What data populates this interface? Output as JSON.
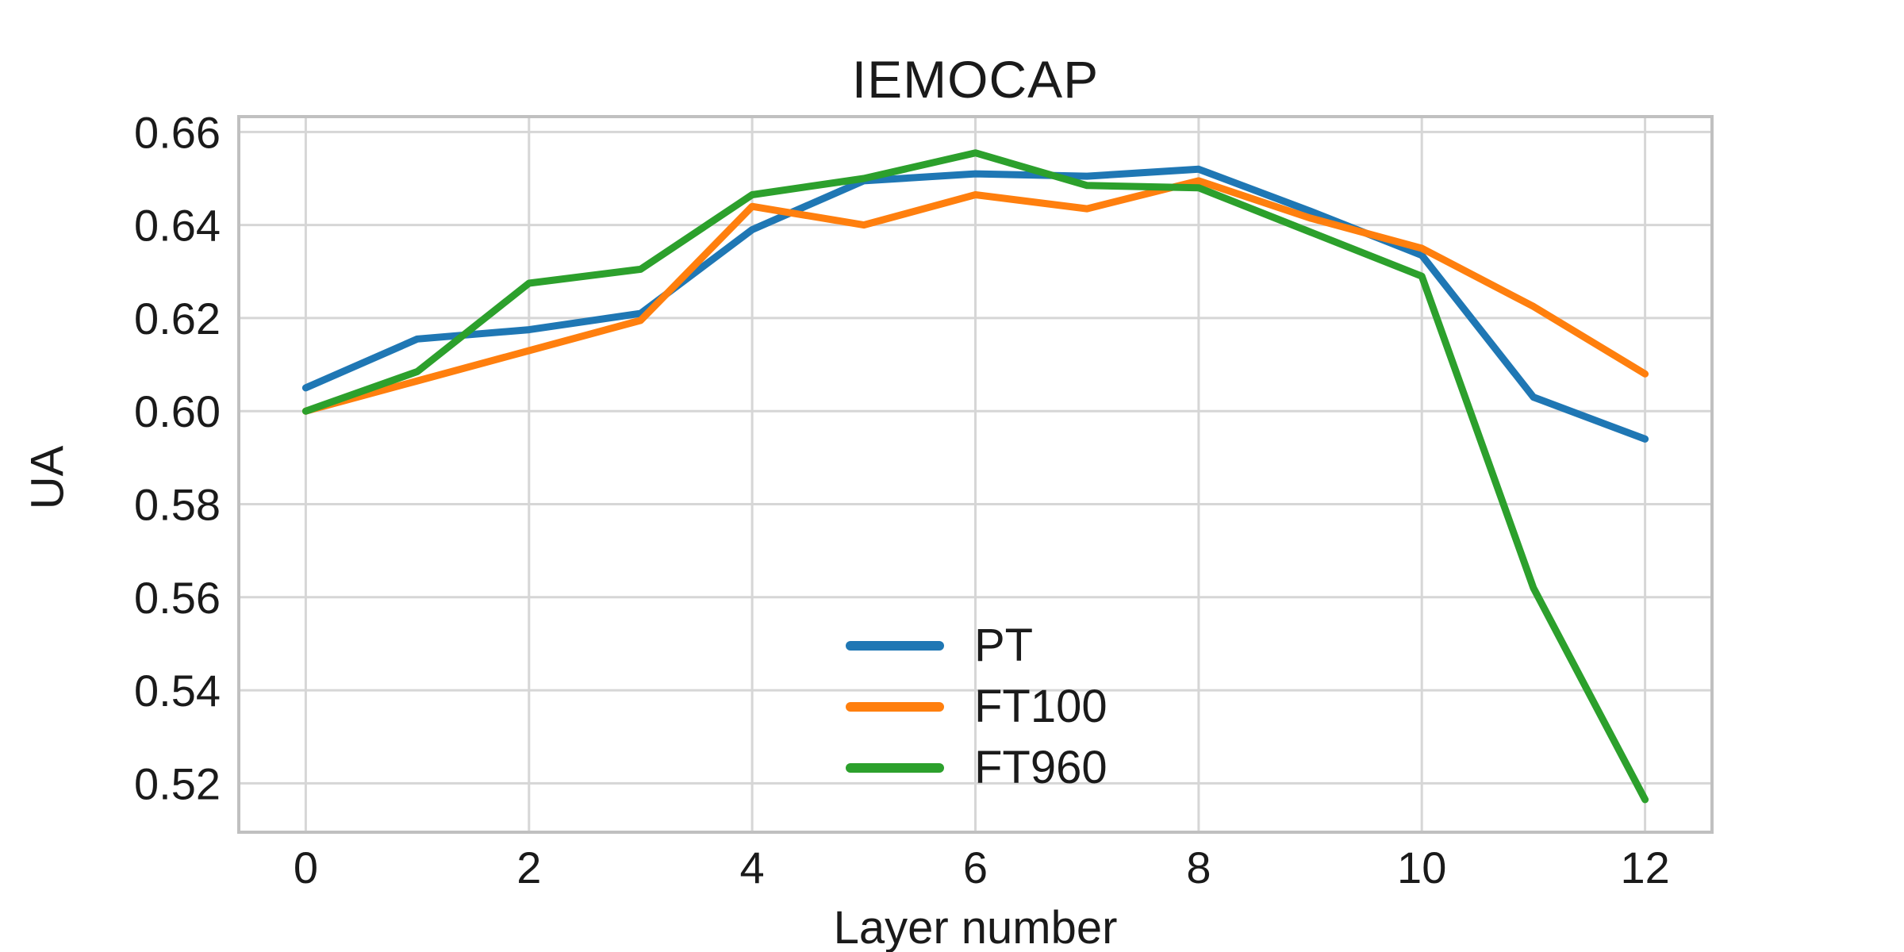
{
  "style": {
    "background": "#ffffff",
    "grid_color": "#d6d6d6",
    "frame_color": "#c0c0c0",
    "text_color": "#1a1a1a"
  },
  "chart_data": {
    "type": "line",
    "title": "IEMOCAP",
    "xlabel": "Layer number",
    "ylabel": "UA",
    "x": [
      0,
      1,
      2,
      3,
      4,
      5,
      6,
      7,
      8,
      9,
      10,
      11,
      12
    ],
    "series": [
      {
        "name": "PT",
        "color": "#1f77b4",
        "values": [
          0.605,
          0.6155,
          0.6175,
          0.621,
          0.639,
          0.6495,
          0.651,
          0.6505,
          0.652,
          0.643,
          0.6335,
          0.603,
          0.594
        ]
      },
      {
        "name": "FT100",
        "color": "#ff7f0e",
        "values": [
          0.6,
          0.6065,
          0.613,
          0.6195,
          0.644,
          0.64,
          0.6465,
          0.6435,
          0.6495,
          0.6415,
          0.635,
          0.6225,
          0.608
        ]
      },
      {
        "name": "FT960",
        "color": "#2ca02c",
        "values": [
          0.6,
          0.6085,
          0.6275,
          0.6305,
          0.6465,
          0.65,
          0.6555,
          0.6485,
          0.648,
          0.6385,
          0.629,
          0.562,
          0.5165
        ]
      }
    ],
    "xticks": [
      0,
      2,
      4,
      6,
      8,
      10,
      12
    ],
    "yticks": [
      0.52,
      0.54,
      0.56,
      0.58,
      0.6,
      0.62,
      0.64,
      0.66
    ],
    "ytick_labels": [
      "0.52",
      "0.54",
      "0.56",
      "0.58",
      "0.60",
      "0.62",
      "0.64",
      "0.66"
    ],
    "xlim": [
      -0.6,
      12.6
    ],
    "ylim": [
      0.5095,
      0.6633
    ],
    "grid": true,
    "legend_position": "lower-center",
    "line_width": 9
  }
}
